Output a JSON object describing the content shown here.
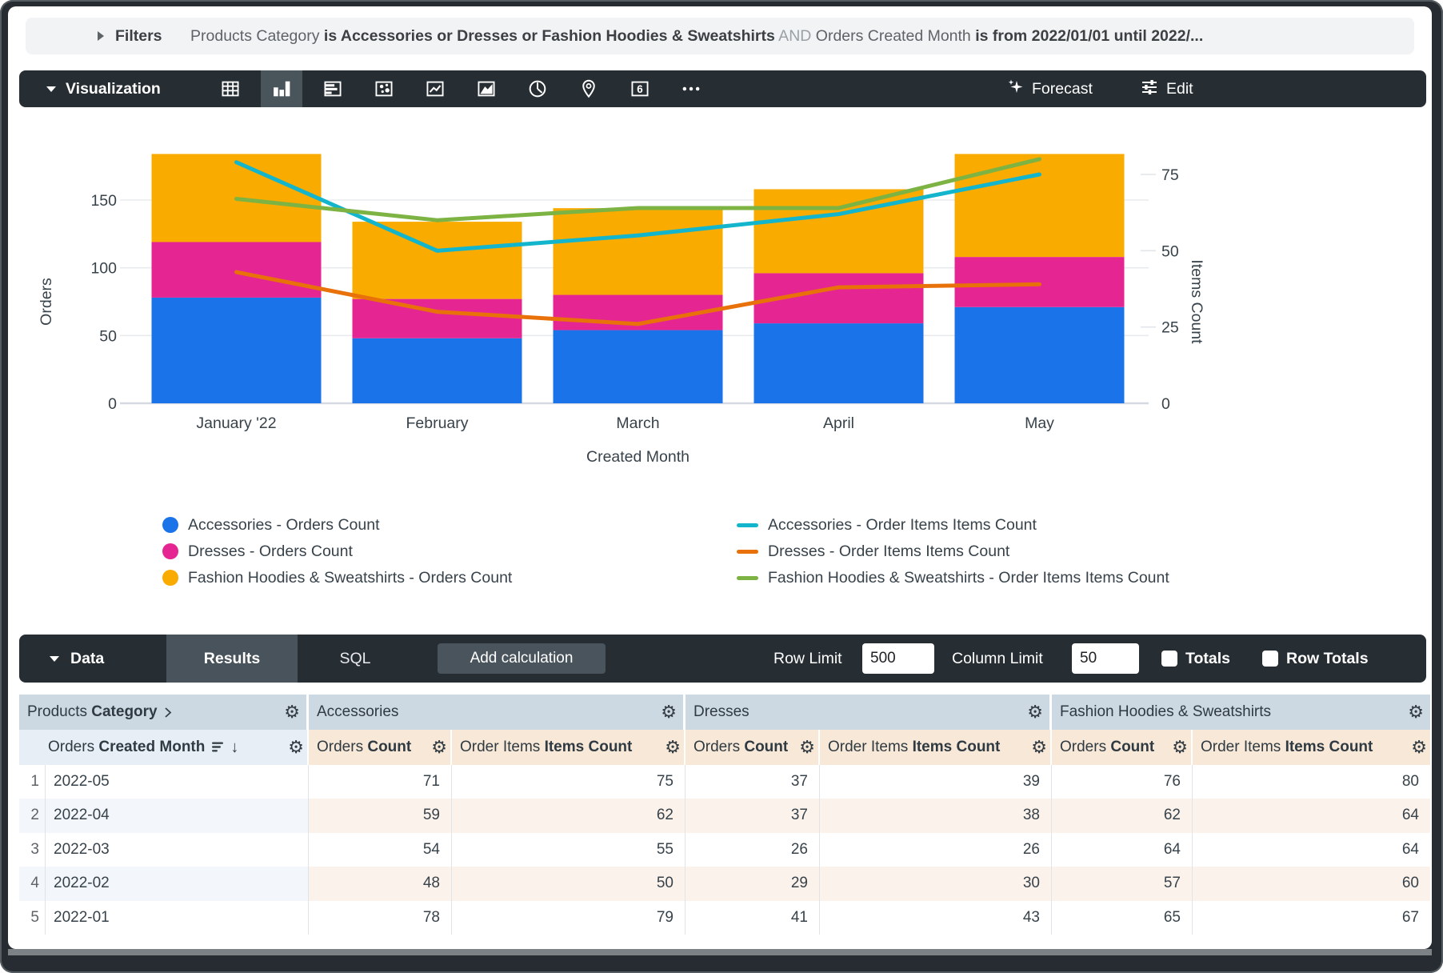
{
  "colors": {
    "toolbar_dark": "#262d33",
    "toolbar_selected": "#4a545b",
    "filters_bg": "#f1f3f4",
    "group_header_bg": "#ccd9e2",
    "dimension_header_bg": "#e7eef5",
    "measure_header_bg": "#f7e8d7",
    "alt_row_dim_bg": "#f3f7fb",
    "alt_row_measure_bg": "#fbf2eb",
    "scrollbar": "#7d8287"
  },
  "filters": {
    "label": "Filters",
    "summary_parts": [
      {
        "text": "Products Category ",
        "style": "dim"
      },
      {
        "text": "is Accessories or Dresses or Fashion Hoodies & Sweatshirts",
        "style": "bold"
      },
      {
        "text": " AND ",
        "style": "faint"
      },
      {
        "text": "Orders Created Month ",
        "style": "dim"
      },
      {
        "text": "is from 2022/01/01 until 2022/...",
        "style": "bold"
      }
    ]
  },
  "viz_toolbar": {
    "label": "Visualization",
    "icons": [
      {
        "name": "table-chart-icon",
        "selected": false
      },
      {
        "name": "column-chart-icon",
        "selected": true
      },
      {
        "name": "bar-chart-icon",
        "selected": false
      },
      {
        "name": "scatter-chart-icon",
        "selected": false
      },
      {
        "name": "line-chart-icon",
        "selected": false
      },
      {
        "name": "area-chart-icon",
        "selected": false
      },
      {
        "name": "pie-chart-icon",
        "selected": false
      },
      {
        "name": "map-chart-icon",
        "selected": false
      },
      {
        "name": "single-value-icon",
        "selected": false
      },
      {
        "name": "more-options-icon",
        "selected": false
      }
    ],
    "single_value_glyph": "6",
    "forecast_label": "Forecast",
    "edit_label": "Edit"
  },
  "chart_data": {
    "type": "combo: stacked bar (left axis) + line (right axis)",
    "categories": [
      "January '22",
      "February",
      "March",
      "April",
      "May"
    ],
    "bar_series": [
      {
        "name": "Accessories - Orders Count",
        "color": "#1a73e8",
        "values": [
          78,
          48,
          54,
          59,
          71
        ]
      },
      {
        "name": "Dresses - Orders Count",
        "color": "#e52592",
        "values": [
          41,
          29,
          26,
          37,
          37
        ]
      },
      {
        "name": "Fashion Hoodies & Sweatshirts - Orders Count",
        "color": "#f9ab00",
        "values": [
          65,
          57,
          64,
          62,
          76
        ]
      }
    ],
    "line_series": [
      {
        "name": "Accessories - Order Items Items Count",
        "color": "#12b5cb",
        "values": [
          79,
          50,
          55,
          62,
          75
        ]
      },
      {
        "name": "Dresses - Order Items Items Count",
        "color": "#e8710a",
        "values": [
          43,
          30,
          26,
          38,
          39
        ]
      },
      {
        "name": "Fashion Hoodies & Sweatshirts - Order Items Items Count",
        "color": "#7cb342",
        "values": [
          67,
          60,
          64,
          64,
          80
        ]
      }
    ],
    "xlabel": "Created Month",
    "ylabel_left": "Orders",
    "ylabel_right": "Items Count",
    "yticks_left": [
      0,
      50,
      100,
      150
    ],
    "yticks_right": [
      0,
      25,
      50,
      75
    ],
    "ylim_left": [
      0,
      195
    ],
    "ylim_right": [
      0,
      86
    ],
    "grid": "horizontal",
    "legend_position": "bottom"
  },
  "data_bar": {
    "label": "Data",
    "tabs": [
      {
        "label": "Results",
        "active": true
      },
      {
        "label": "SQL",
        "active": false
      }
    ],
    "add_calculation_label": "Add calculation",
    "row_limit_label": "Row Limit",
    "row_limit_value": "500",
    "column_limit_label": "Column Limit",
    "column_limit_value": "50",
    "totals_label": "Totals",
    "totals_checked": false,
    "row_totals_label": "Row Totals",
    "row_totals_checked": false
  },
  "table": {
    "group_headers": [
      {
        "regular": "Products ",
        "bold": "Category",
        "has_chevron": true
      },
      {
        "label": "Accessories"
      },
      {
        "label": "Dresses"
      },
      {
        "label": "Fashion Hoodies & Sweatshirts"
      }
    ],
    "dimension_header": {
      "regular": "Orders ",
      "bold": "Created Month"
    },
    "measure_header_pair": [
      {
        "regular": "Orders ",
        "bold": "Count"
      },
      {
        "regular": "Order Items ",
        "bold": "Items Count"
      }
    ],
    "rows": [
      {
        "index": 1,
        "month": "2022-05",
        "values": [
          71,
          75,
          37,
          39,
          76,
          80
        ]
      },
      {
        "index": 2,
        "month": "2022-04",
        "values": [
          59,
          62,
          37,
          38,
          62,
          64
        ]
      },
      {
        "index": 3,
        "month": "2022-03",
        "values": [
          54,
          55,
          26,
          26,
          64,
          64
        ]
      },
      {
        "index": 4,
        "month": "2022-02",
        "values": [
          48,
          50,
          29,
          30,
          57,
          60
        ]
      },
      {
        "index": 5,
        "month": "2022-01",
        "values": [
          78,
          79,
          41,
          43,
          65,
          67
        ]
      }
    ]
  }
}
